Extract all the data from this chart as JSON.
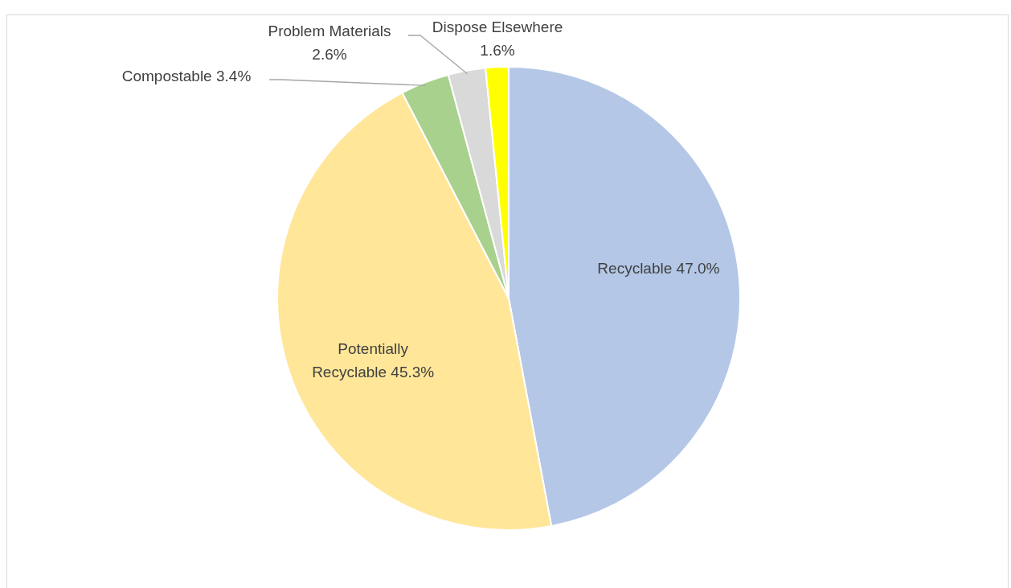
{
  "chart_data": {
    "type": "pie",
    "categories": [
      "Recyclable",
      "Potentially Recyclable",
      "Compostable",
      "Problem Materials",
      "Dispose Elsewhere"
    ],
    "values": [
      47.0,
      45.3,
      3.4,
      2.6,
      1.6
    ],
    "colors": [
      "#b4c7e7",
      "#ffe699",
      "#a9d18e",
      "#d9d9d9",
      "#ffff00"
    ],
    "value_labels": [
      "47.0%",
      "45.3%",
      "3.4%",
      "2.6%",
      "1.6%"
    ],
    "legend": false
  }
}
